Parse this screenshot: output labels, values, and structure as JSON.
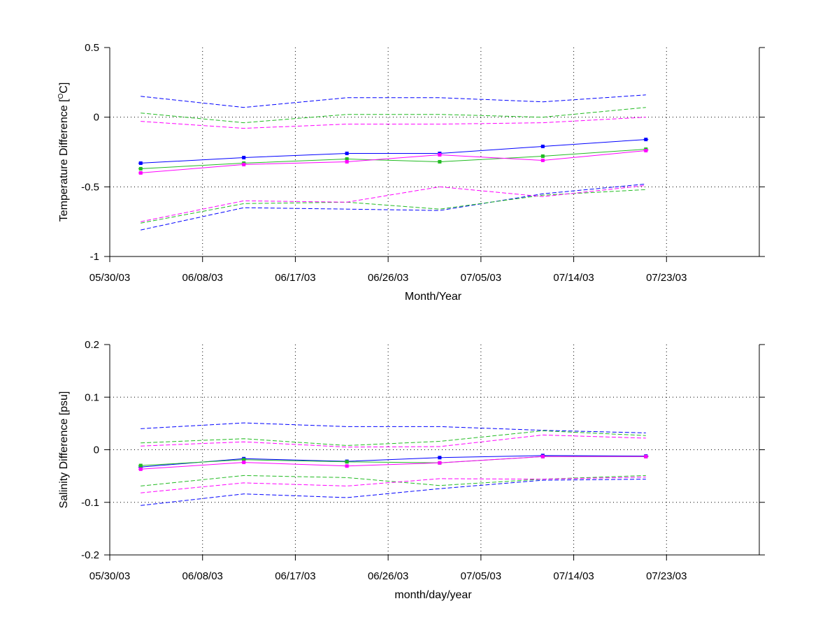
{
  "chart_data": [
    {
      "type": "line",
      "xlabel": "Month/Year",
      "ylabel": {
        "prefix": "Temperature Difference [",
        "superscript": "O",
        "suffix": "C]"
      },
      "ylim": [
        -1,
        0.5
      ],
      "y_ticks": [
        0.5,
        0,
        -0.5,
        -1
      ],
      "y_tick_labels": [
        "0.5",
        "0",
        "-0.5",
        "-1"
      ],
      "x_range": [
        "2003-05-30",
        "2003-08-01"
      ],
      "x_ticks": [
        "2003-05-30",
        "2003-06-08",
        "2003-06-17",
        "2003-06-26",
        "2003-07-05",
        "2003-07-14",
        "2003-07-23"
      ],
      "x_tick_labels": [
        "05/30/03",
        "06/08/03",
        "06/17/03",
        "06/26/03",
        "07/05/03",
        "07/14/03",
        "07/23/03"
      ],
      "grid": true,
      "series": [
        {
          "color": "#0000ff",
          "style": "solid",
          "marker": true,
          "x": [
            "2003-06-02",
            "2003-06-12",
            "2003-06-22",
            "2003-07-01",
            "2003-07-11",
            "2003-07-21"
          ],
          "values": [
            -0.33,
            -0.29,
            -0.26,
            -0.26,
            -0.21,
            -0.16
          ]
        },
        {
          "color": "#22bb22",
          "style": "solid",
          "marker": true,
          "x": [
            "2003-06-02",
            "2003-06-12",
            "2003-06-22",
            "2003-07-01",
            "2003-07-11",
            "2003-07-21"
          ],
          "values": [
            -0.37,
            -0.33,
            -0.3,
            -0.32,
            -0.28,
            -0.23
          ]
        },
        {
          "color": "#ff00ff",
          "style": "solid",
          "marker": true,
          "x": [
            "2003-06-02",
            "2003-06-12",
            "2003-06-22",
            "2003-07-01",
            "2003-07-11",
            "2003-07-21"
          ],
          "values": [
            -0.4,
            -0.34,
            -0.32,
            -0.27,
            -0.31,
            -0.24
          ]
        },
        {
          "color": "#0000ff",
          "style": "dashed",
          "marker": false,
          "x": [
            "2003-06-02",
            "2003-06-12",
            "2003-06-22",
            "2003-07-01",
            "2003-07-11",
            "2003-07-21"
          ],
          "values": [
            0.15,
            0.07,
            0.14,
            0.14,
            0.11,
            0.16
          ]
        },
        {
          "color": "#22bb22",
          "style": "dashed",
          "marker": false,
          "x": [
            "2003-06-02",
            "2003-06-12",
            "2003-06-22",
            "2003-07-01",
            "2003-07-11",
            "2003-07-21"
          ],
          "values": [
            0.03,
            -0.04,
            0.02,
            0.02,
            0.0,
            0.07
          ]
        },
        {
          "color": "#ff00ff",
          "style": "dashed",
          "marker": false,
          "x": [
            "2003-06-02",
            "2003-06-12",
            "2003-06-22",
            "2003-07-01",
            "2003-07-11",
            "2003-07-21"
          ],
          "values": [
            -0.03,
            -0.08,
            -0.05,
            -0.05,
            -0.04,
            0.0
          ]
        },
        {
          "color": "#0000ff",
          "style": "dashed",
          "marker": false,
          "x": [
            "2003-06-02",
            "2003-06-12",
            "2003-06-22",
            "2003-07-01",
            "2003-07-11",
            "2003-07-21"
          ],
          "values": [
            -0.81,
            -0.65,
            -0.66,
            -0.67,
            -0.55,
            -0.48
          ]
        },
        {
          "color": "#22bb22",
          "style": "dashed",
          "marker": false,
          "x": [
            "2003-06-02",
            "2003-06-12",
            "2003-06-22",
            "2003-07-01",
            "2003-07-11",
            "2003-07-21"
          ],
          "values": [
            -0.76,
            -0.62,
            -0.61,
            -0.66,
            -0.56,
            -0.52
          ]
        },
        {
          "color": "#ff00ff",
          "style": "dashed",
          "marker": false,
          "x": [
            "2003-06-02",
            "2003-06-12",
            "2003-06-22",
            "2003-07-01",
            "2003-07-11",
            "2003-07-21"
          ],
          "values": [
            -0.75,
            -0.6,
            -0.61,
            -0.5,
            -0.57,
            -0.49
          ]
        }
      ]
    },
    {
      "type": "line",
      "xlabel": "month/day/year",
      "ylabel": "Salinity Difference [psu]",
      "ylim": [
        -0.2,
        0.2
      ],
      "y_ticks": [
        0.2,
        0.1,
        0,
        -0.1,
        -0.2
      ],
      "y_tick_labels": [
        "0.2",
        "0.1",
        "0",
        "-0.1",
        "-0.2"
      ],
      "x_range": [
        "2003-05-30",
        "2003-08-01"
      ],
      "x_ticks": [
        "2003-05-30",
        "2003-06-08",
        "2003-06-17",
        "2003-06-26",
        "2003-07-05",
        "2003-07-14",
        "2003-07-23"
      ],
      "x_tick_labels": [
        "05/30/03",
        "06/08/03",
        "06/17/03",
        "06/26/03",
        "07/05/03",
        "07/14/03",
        "07/23/03"
      ],
      "grid": true,
      "series": [
        {
          "color": "#0000ff",
          "style": "solid",
          "marker": true,
          "x": [
            "2003-06-02",
            "2003-06-12",
            "2003-06-22",
            "2003-07-01",
            "2003-07-11",
            "2003-07-21"
          ],
          "values": [
            -0.033,
            -0.017,
            -0.022,
            -0.015,
            -0.011,
            -0.012
          ]
        },
        {
          "color": "#22bb22",
          "style": "solid",
          "marker": true,
          "x": [
            "2003-06-02",
            "2003-06-12",
            "2003-06-22",
            "2003-07-01",
            "2003-07-11",
            "2003-07-21"
          ],
          "values": [
            -0.03,
            -0.019,
            -0.023,
            -0.025,
            -0.013,
            -0.013
          ]
        },
        {
          "color": "#ff00ff",
          "style": "solid",
          "marker": true,
          "x": [
            "2003-06-02",
            "2003-06-12",
            "2003-06-22",
            "2003-07-01",
            "2003-07-11",
            "2003-07-21"
          ],
          "values": [
            -0.037,
            -0.024,
            -0.031,
            -0.025,
            -0.013,
            -0.013
          ]
        },
        {
          "color": "#0000ff",
          "style": "dashed",
          "marker": false,
          "x": [
            "2003-06-02",
            "2003-06-12",
            "2003-06-22",
            "2003-07-01",
            "2003-07-11",
            "2003-07-21"
          ],
          "values": [
            0.04,
            0.051,
            0.044,
            0.044,
            0.037,
            0.032
          ]
        },
        {
          "color": "#22bb22",
          "style": "dashed",
          "marker": false,
          "x": [
            "2003-06-02",
            "2003-06-12",
            "2003-06-22",
            "2003-07-01",
            "2003-07-11",
            "2003-07-21"
          ],
          "values": [
            0.013,
            0.021,
            0.008,
            0.016,
            0.036,
            0.027
          ]
        },
        {
          "color": "#ff00ff",
          "style": "dashed",
          "marker": false,
          "x": [
            "2003-06-02",
            "2003-06-12",
            "2003-06-22",
            "2003-07-01",
            "2003-07-11",
            "2003-07-21"
          ],
          "values": [
            0.007,
            0.015,
            0.005,
            0.006,
            0.028,
            0.022
          ]
        },
        {
          "color": "#0000ff",
          "style": "dashed",
          "marker": false,
          "x": [
            "2003-06-02",
            "2003-06-12",
            "2003-06-22",
            "2003-07-01",
            "2003-07-11",
            "2003-07-21"
          ],
          "values": [
            -0.106,
            -0.084,
            -0.091,
            -0.074,
            -0.058,
            -0.056
          ]
        },
        {
          "color": "#22bb22",
          "style": "dashed",
          "marker": false,
          "x": [
            "2003-06-02",
            "2003-06-12",
            "2003-06-22",
            "2003-07-01",
            "2003-07-11",
            "2003-07-21"
          ],
          "values": [
            -0.069,
            -0.049,
            -0.053,
            -0.068,
            -0.056,
            -0.049
          ]
        },
        {
          "color": "#ff00ff",
          "style": "dashed",
          "marker": false,
          "x": [
            "2003-06-02",
            "2003-06-12",
            "2003-06-22",
            "2003-07-01",
            "2003-07-11",
            "2003-07-21"
          ],
          "values": [
            -0.082,
            -0.063,
            -0.069,
            -0.055,
            -0.056,
            -0.052
          ]
        }
      ]
    }
  ]
}
